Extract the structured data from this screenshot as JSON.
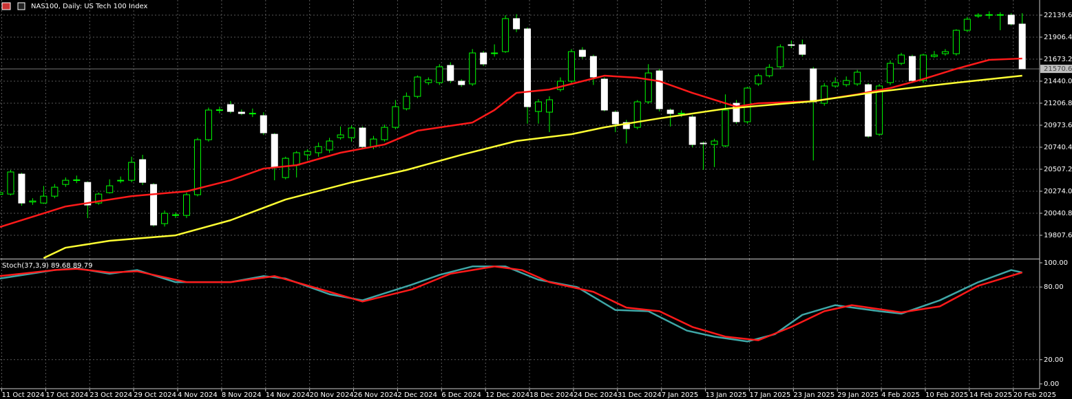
{
  "chart_data": {
    "type": "candlestick",
    "title": "NAS100, Daily: US Tech 100 Index",
    "categories": [
      "11 Oct 2024",
      null,
      null,
      null,
      "17 Oct 2024",
      null,
      null,
      null,
      "23 Oct 2024",
      null,
      null,
      null,
      "29 Oct 2024",
      null,
      null,
      null,
      "4 Nov 2024",
      null,
      null,
      null,
      "8 Nov 2024",
      null,
      null,
      null,
      "14 Nov 2024",
      null,
      null,
      null,
      "20 Nov 2024",
      null,
      null,
      null,
      "26 Nov 2024",
      null,
      null,
      null,
      "2 Dec 2024",
      null,
      null,
      null,
      "6 Dec 2024",
      null,
      null,
      null,
      "12 Dec 2024",
      null,
      null,
      null,
      "18 Dec 2024",
      null,
      null,
      null,
      "24 Dec 2024",
      null,
      null,
      null,
      "31 Dec 2024",
      null,
      null,
      null,
      "7 Jan 2025",
      null,
      null,
      null,
      "13 Jan 2025",
      null,
      null,
      null,
      "17 Jan 2025",
      null,
      null,
      null,
      "23 Jan 2025",
      null,
      null,
      null,
      "29 Jan 2025",
      null,
      null,
      null,
      "4 Feb 2025",
      null,
      null,
      null,
      "10 Feb 2025",
      null,
      null,
      null,
      "14 Feb 2025",
      null,
      null,
      null,
      "20 Feb 2025",
      null
    ],
    "open": [
      20240,
      20244,
      20456,
      20160,
      20149,
      20222,
      20346,
      20390,
      20368,
      20149,
      20259,
      20385,
      20390,
      20609,
      20346,
      19931,
      20018,
      20018,
      20237,
      20820,
      21134,
      21192,
      21112,
      21097,
      21075,
      20878,
      20419,
      20550,
      20660,
      20682,
      20711,
      20842,
      20842,
      20944,
      20747,
      20820,
      20951,
      21148,
      21279,
      21425,
      21425,
      21607,
      21440,
      21411,
      21739,
      21735,
      21753,
      22103,
      21994,
      21119,
      21112,
      21352,
      21440,
      21768,
      21702,
      21462,
      21112,
      21002,
      20951,
      21221,
      21549,
      21134,
      21097,
      21061,
      20784,
      20769,
      20755,
      21206,
      21010,
      21411,
      21498,
      21593,
      21826,
      21826,
      21571,
      21206,
      21389,
      21403,
      21411,
      21403,
      20878,
      21425,
      21629,
      21702,
      21447,
      21702,
      21731,
      21731,
      21979,
      22130,
      22140,
      22140,
      22140,
      22045
    ],
    "high": [
      20280,
      20500,
      20470,
      20200,
      20330,
      20350,
      20420,
      20440,
      20380,
      20260,
      20400,
      20430,
      20640,
      20660,
      20360,
      20070,
      20050,
      20260,
      20840,
      21160,
      21170,
      21230,
      21140,
      21150,
      21110,
      20890,
      20640,
      20700,
      20720,
      20790,
      20840,
      20960,
      20970,
      20960,
      20860,
      20980,
      21240,
      21320,
      21500,
      21480,
      21620,
      21640,
      21460,
      21780,
      21760,
      21830,
      22140,
      22150,
      22010,
      21250,
      21280,
      21480,
      21780,
      21800,
      21720,
      21480,
      21130,
      21030,
      21240,
      21620,
      21570,
      21150,
      21130,
      21080,
      20800,
      20830,
      21300,
      21240,
      21380,
      21520,
      21620,
      21830,
      21870,
      21880,
      21590,
      21420,
      21480,
      21490,
      21560,
      21420,
      21410,
      21660,
      21740,
      21720,
      21730,
      21760,
      21780,
      21990,
      22120,
      22160,
      22180,
      22170,
      22160,
      22160
    ],
    "low": [
      20220,
      20230,
      20120,
      20130,
      20140,
      20200,
      20320,
      20360,
      19990,
      20130,
      20250,
      20360,
      20370,
      20340,
      19900,
      19900,
      19990,
      19990,
      20220,
      20800,
      21100,
      21100,
      21080,
      21060,
      20870,
      20390,
      20400,
      20420,
      20600,
      20640,
      20680,
      20820,
      20800,
      20720,
      20720,
      20800,
      20930,
      21130,
      21260,
      21400,
      21400,
      21420,
      21380,
      21390,
      21600,
      21700,
      21740,
      21960,
      20990,
      20990,
      20900,
      21330,
      21420,
      21680,
      21400,
      21120,
      20900,
      20780,
      20930,
      21200,
      21120,
      20960,
      21060,
      20740,
      20500,
      20530,
      20740,
      20990,
      20990,
      21390,
      21480,
      21570,
      21790,
      21700,
      20600,
      21180,
      21370,
      21380,
      21390,
      20840,
      20860,
      21400,
      21610,
      21420,
      21420,
      21690,
      21710,
      21710,
      21960,
      22110,
      22100,
      21980,
      22030,
      21571
    ],
    "close": [
      20259,
      20478,
      20149,
      20171,
      20222,
      20317,
      20390,
      20395,
      20128,
      20244,
      20332,
      20390,
      20580,
      20368,
      19916,
      20040,
      20025,
      20237,
      20820,
      21134,
      21137,
      21119,
      21097,
      21100,
      20893,
      20529,
      20623,
      20682,
      20696,
      20747,
      20806,
      20871,
      20944,
      20747,
      20827,
      20951,
      21170,
      21279,
      21484,
      21454,
      21593,
      21447,
      21403,
      21739,
      21622,
      21739,
      22103,
      21994,
      21170,
      21221,
      21243,
      21440,
      21753,
      21702,
      21484,
      21134,
      20988,
      20937,
      21221,
      21527,
      21148,
      21097,
      21100,
      20769,
      20780,
      20806,
      21134,
      21010,
      21367,
      21498,
      21586,
      21804,
      21820,
      21724,
      21221,
      21389,
      21425,
      21447,
      21535,
      20857,
      21389,
      21629,
      21717,
      21447,
      21717,
      21717,
      21753,
      21979,
      22096,
      22140,
      22145,
      22145,
      22045,
      21571
    ],
    "up_color": "#00ff00",
    "down_color": "#ffffff",
    "overlays": [
      {
        "color": "#ff1a1a",
        "x": [
          0,
          6,
          12,
          17,
          21,
          24,
          27,
          31,
          35,
          38,
          43,
          45,
          47,
          50,
          53,
          55,
          58,
          60,
          63,
          67,
          69,
          74,
          78,
          81,
          84,
          87,
          90,
          93
        ],
        "values": [
          19894,
          20113,
          20222,
          20273,
          20390,
          20514,
          20550,
          20682,
          20769,
          20915,
          21002,
          21134,
          21316,
          21352,
          21440,
          21498,
          21476,
          21440,
          21316,
          21170,
          21206,
          21228,
          21301,
          21367,
          21462,
          21571,
          21666,
          21680
        ]
      },
      {
        "color": "#ffff33",
        "x": [
          4,
          6,
          10,
          16,
          21,
          26,
          32,
          37,
          42,
          47,
          52,
          55,
          60,
          66,
          74,
          80,
          86,
          93
        ],
        "values": [
          19566,
          19676,
          19749,
          19807,
          19967,
          20186,
          20368,
          20499,
          20660,
          20806,
          20878,
          20951,
          21046,
          21148,
          21228,
          21330,
          21411,
          21498
        ]
      }
    ],
    "current_price": {
      "value": 21570.6,
      "label": "21570.6"
    },
    "ylim": [
      19559.8,
      22299.9
    ],
    "yticks": [
      22139.6,
      21906.4,
      21673.2,
      {
        "value": 21440,
        "label": "21440.0"
      },
      21206.8,
      20973.6,
      20740.4,
      20507.2,
      {
        "value": 20274,
        "label": "20274.0"
      },
      20040.8,
      19807.6
    ],
    "grid": true,
    "indicator": {
      "type": "line",
      "title": "Stoch(37,3,9) 89.68 89.79",
      "ylim": [
        -3.98,
        102.84
      ],
      "yticks": [
        {
          "value": 100,
          "label": "100.00"
        },
        {
          "value": 80,
          "label": "80.00"
        },
        {
          "value": 20,
          "label": "20.00"
        },
        {
          "value": 0,
          "label": "0.00"
        }
      ],
      "series": [
        {
          "color": "#3fa7a7",
          "x": [
            0,
            5,
            7,
            10,
            12.5,
            16,
            21,
            24,
            26,
            30,
            33,
            37.5,
            40,
            43,
            46,
            49,
            52.5,
            56,
            59,
            62.5,
            65,
            68,
            70.5,
            73,
            76,
            80,
            82,
            85.5,
            89,
            92,
            93
          ],
          "values": [
            87,
            94,
            95.5,
            91,
            94,
            84,
            84,
            89,
            87,
            74,
            69,
            82,
            90,
            97,
            97,
            86,
            80,
            61,
            60,
            44,
            39,
            35,
            41,
            57,
            65,
            60,
            58,
            69,
            84,
            94,
            92
          ]
        },
        {
          "color": "#ff1a1a",
          "x": [
            0,
            5,
            7,
            10,
            12.5,
            17,
            21,
            25,
            30,
            33,
            37.5,
            41,
            45,
            47.5,
            50,
            54,
            57,
            60,
            63,
            66,
            69,
            72,
            75,
            77.5,
            82,
            85.5,
            89,
            93
          ],
          "values": [
            89,
            94,
            95,
            92,
            93,
            84,
            84,
            89,
            76,
            68,
            78,
            91,
            97,
            94,
            84,
            76,
            63,
            60,
            47,
            39,
            36,
            47,
            60,
            65,
            59,
            64,
            81,
            92
          ]
        }
      ]
    }
  }
}
